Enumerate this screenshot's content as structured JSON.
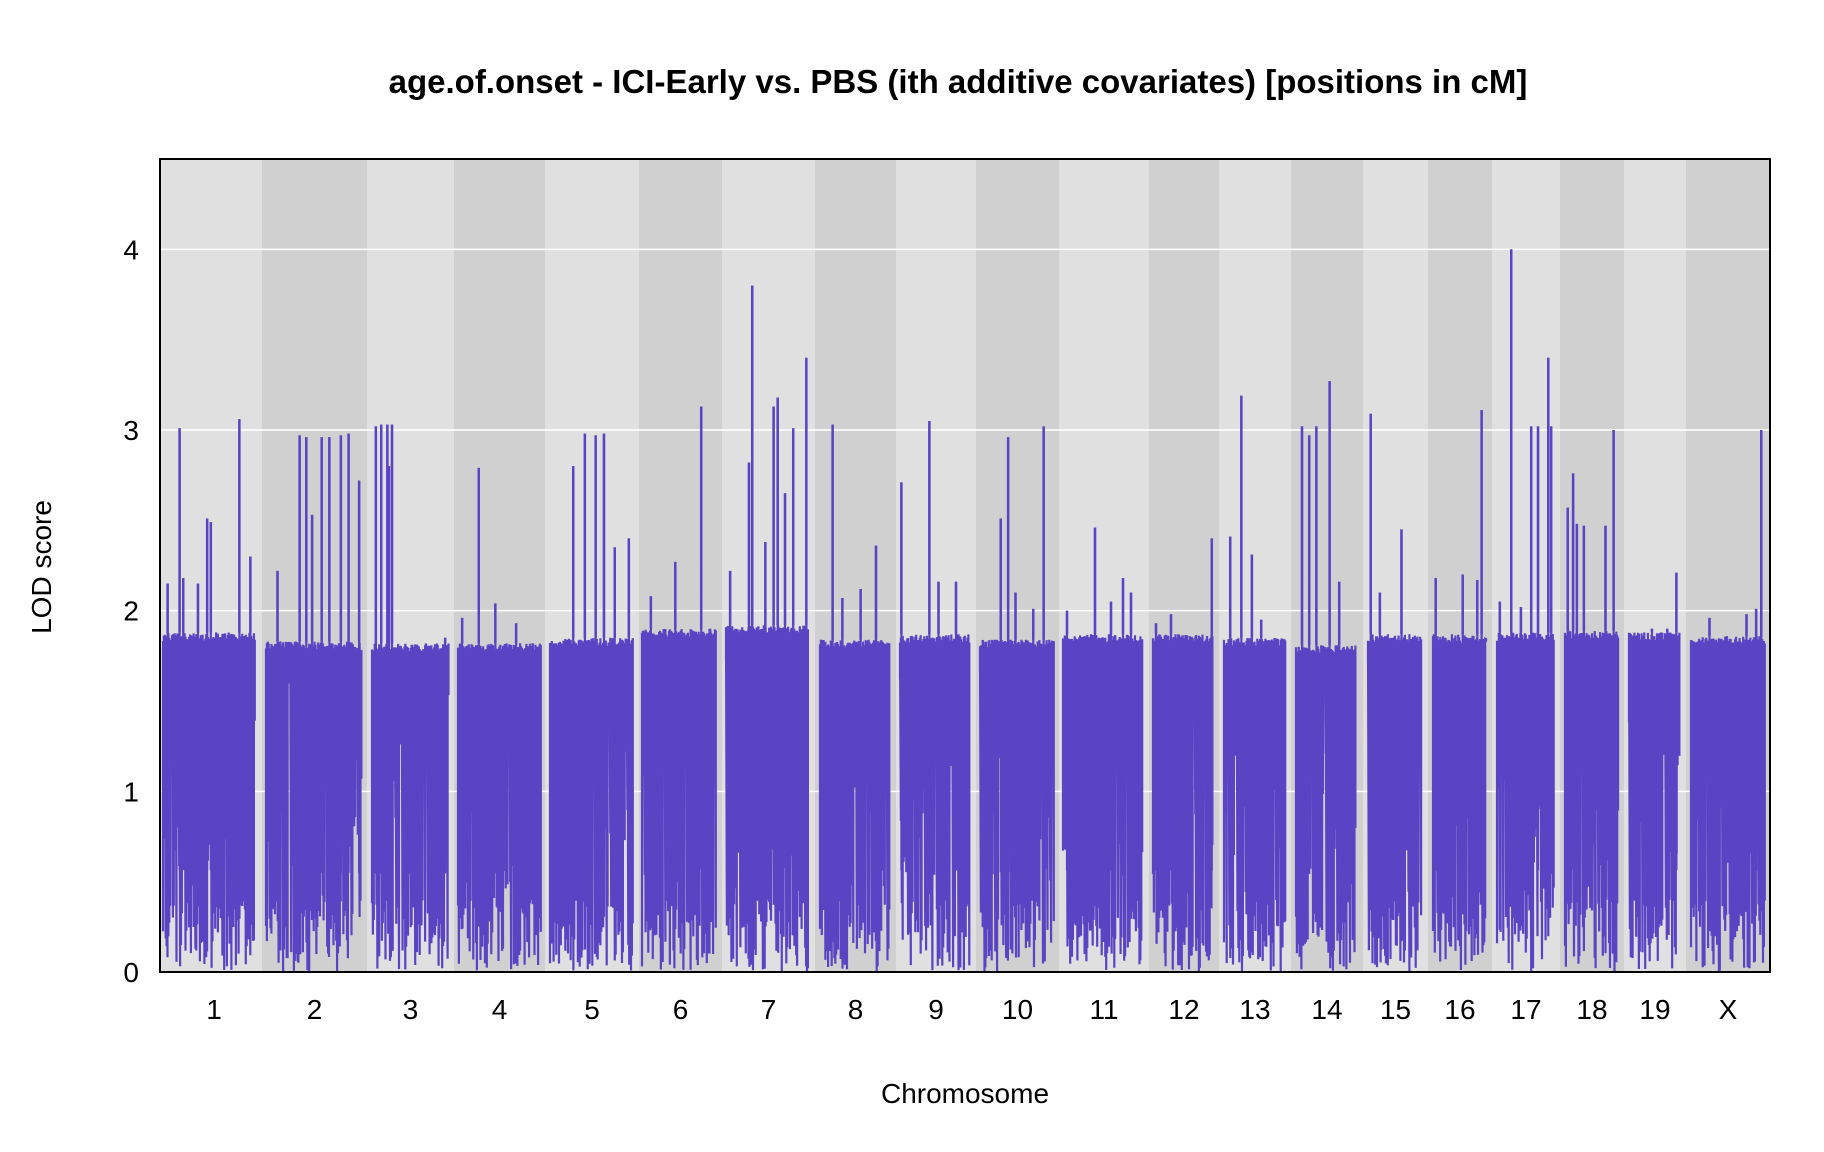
{
  "chart_data": {
    "type": "line",
    "title": "age.of.onset - ICI-Early vs. PBS (ith additive covariates) [positions in cM]",
    "xlabel": "Chromosome",
    "ylabel": "LOD score",
    "ylim": [
      0,
      4.5
    ],
    "yticks": [
      0,
      1,
      2,
      3,
      4
    ],
    "grid": true,
    "line_color": "#5a44c4",
    "panel_colors": [
      "#e0e0e0",
      "#d0d0d0"
    ],
    "chromosomes": [
      {
        "label": "1",
        "baseline": 1.88,
        "peaks": [
          [
            0.05,
            2.15
          ],
          [
            0.18,
            3.01
          ],
          [
            0.22,
            2.18
          ],
          [
            0.38,
            2.15
          ],
          [
            0.48,
            2.51
          ],
          [
            0.52,
            2.49
          ],
          [
            0.83,
            3.06
          ],
          [
            0.95,
            2.3
          ]
        ]
      },
      {
        "label": "2",
        "baseline": 1.83,
        "peaks": [
          [
            0.12,
            2.22
          ],
          [
            0.35,
            2.97
          ],
          [
            0.42,
            2.96
          ],
          [
            0.48,
            2.53
          ],
          [
            0.58,
            2.96
          ],
          [
            0.66,
            2.96
          ],
          [
            0.78,
            2.97
          ],
          [
            0.86,
            2.98
          ],
          [
            0.97,
            2.72
          ]
        ]
      },
      {
        "label": "3",
        "baseline": 1.82,
        "peaks": [
          [
            0.05,
            3.02
          ],
          [
            0.12,
            3.03
          ],
          [
            0.2,
            3.03
          ],
          [
            0.26,
            3.03
          ],
          [
            0.22,
            2.8
          ],
          [
            0.95,
            1.85
          ]
        ]
      },
      {
        "label": "4",
        "baseline": 1.82,
        "peaks": [
          [
            0.05,
            1.96
          ],
          [
            0.25,
            2.79
          ],
          [
            0.45,
            2.04
          ],
          [
            0.7,
            1.93
          ]
        ]
      },
      {
        "label": "5",
        "baseline": 1.85,
        "peaks": [
          [
            0.28,
            2.8
          ],
          [
            0.42,
            2.98
          ],
          [
            0.55,
            2.97
          ],
          [
            0.65,
            2.98
          ],
          [
            0.78,
            2.35
          ],
          [
            0.95,
            2.4
          ]
        ]
      },
      {
        "label": "6",
        "baseline": 1.9,
        "peaks": [
          [
            0.12,
            2.08
          ],
          [
            0.45,
            2.27
          ],
          [
            0.8,
            3.13
          ],
          [
            0.92,
            1.67
          ]
        ]
      },
      {
        "label": "7",
        "baseline": 1.92,
        "peaks": [
          [
            0.05,
            2.22
          ],
          [
            0.28,
            2.82
          ],
          [
            0.32,
            3.8
          ],
          [
            0.48,
            2.38
          ],
          [
            0.58,
            3.13
          ],
          [
            0.63,
            3.18
          ],
          [
            0.72,
            2.65
          ],
          [
            0.82,
            3.01
          ],
          [
            0.98,
            3.4
          ]
        ]
      },
      {
        "label": "8",
        "baseline": 1.84,
        "peaks": [
          [
            0.18,
            3.03
          ],
          [
            0.32,
            2.07
          ],
          [
            0.58,
            2.12
          ],
          [
            0.8,
            2.36
          ]
        ]
      },
      {
        "label": "9",
        "baseline": 1.87,
        "peaks": [
          [
            0.02,
            2.71
          ],
          [
            0.42,
            3.05
          ],
          [
            0.55,
            2.16
          ],
          [
            0.8,
            2.16
          ]
        ]
      },
      {
        "label": "10",
        "baseline": 1.84,
        "peaks": [
          [
            0.28,
            2.51
          ],
          [
            0.38,
            2.96
          ],
          [
            0.48,
            2.1
          ],
          [
            0.72,
            2.01
          ],
          [
            0.86,
            3.02
          ]
        ]
      },
      {
        "label": "11",
        "baseline": 1.87,
        "peaks": [
          [
            0.05,
            2.0
          ],
          [
            0.4,
            2.46
          ],
          [
            0.6,
            2.05
          ],
          [
            0.75,
            2.18
          ],
          [
            0.85,
            2.1
          ]
        ]
      },
      {
        "label": "12",
        "baseline": 1.87,
        "peaks": [
          [
            0.05,
            1.93
          ],
          [
            0.3,
            1.98
          ],
          [
            0.98,
            2.4
          ]
        ]
      },
      {
        "label": "13",
        "baseline": 1.85,
        "peaks": [
          [
            0.1,
            2.41
          ],
          [
            0.28,
            3.19
          ],
          [
            0.45,
            2.31
          ],
          [
            0.6,
            1.95
          ]
        ]
      },
      {
        "label": "14",
        "baseline": 1.81,
        "peaks": [
          [
            0.1,
            3.02
          ],
          [
            0.22,
            2.97
          ],
          [
            0.34,
            3.02
          ],
          [
            0.56,
            3.27
          ],
          [
            0.72,
            2.16
          ]
        ]
      },
      {
        "label": "15",
        "baseline": 1.87,
        "peaks": [
          [
            0.05,
            3.09
          ],
          [
            0.22,
            2.1
          ],
          [
            0.62,
            2.45
          ]
        ]
      },
      {
        "label": "16",
        "baseline": 1.87,
        "peaks": [
          [
            0.05,
            2.18
          ],
          [
            0.55,
            2.2
          ],
          [
            0.82,
            2.17
          ],
          [
            0.9,
            3.11
          ]
        ]
      },
      {
        "label": "17",
        "baseline": 1.88,
        "peaks": [
          [
            0.05,
            2.05
          ],
          [
            0.25,
            4.0
          ],
          [
            0.42,
            2.02
          ],
          [
            0.6,
            3.02
          ],
          [
            0.72,
            3.02
          ],
          [
            0.9,
            3.4
          ],
          [
            0.95,
            3.02
          ]
        ]
      },
      {
        "label": "18",
        "baseline": 1.89,
        "peaks": [
          [
            0.05,
            2.57
          ],
          [
            0.15,
            2.76
          ],
          [
            0.22,
            2.48
          ],
          [
            0.35,
            2.47
          ],
          [
            0.75,
            2.47
          ],
          [
            0.9,
            3.0
          ]
        ]
      },
      {
        "label": "19",
        "baseline": 1.88,
        "peaks": [
          [
            0.45,
            1.9
          ],
          [
            0.75,
            1.9
          ],
          [
            0.93,
            2.21
          ]
        ]
      },
      {
        "label": "X",
        "baseline": 1.86,
        "peaks": [
          [
            0.25,
            1.96
          ],
          [
            0.75,
            1.98
          ],
          [
            0.88,
            2.01
          ],
          [
            0.95,
            3.0
          ]
        ]
      }
    ]
  }
}
